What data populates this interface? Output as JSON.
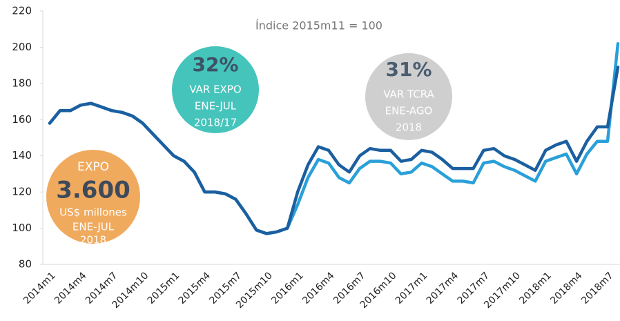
{
  "chart_data": {
    "type": "line",
    "subtitle": "Índice 2015m11 = 100",
    "categories": [
      "2014m1",
      null,
      null,
      "2014m4",
      null,
      null,
      "2014m7",
      null,
      null,
      "2014m10",
      null,
      null,
      "2015m1",
      null,
      null,
      "2015m4",
      null,
      null,
      "2015m7",
      null,
      null,
      "2015m10",
      null,
      null,
      "2016m1",
      null,
      null,
      "2016m4",
      null,
      null,
      "2016m7",
      null,
      null,
      "2016m10",
      null,
      null,
      "2017m1",
      null,
      null,
      "2017m4",
      null,
      null,
      "2017m7",
      null,
      null,
      "2017m10",
      null,
      null,
      "2018m1",
      null,
      null,
      "2018m4",
      null,
      null,
      "2018m7",
      null
    ],
    "series": [
      {
        "color": "#2aa0d8",
        "values": [
          158,
          165,
          165,
          168,
          169,
          167,
          165,
          164,
          162,
          158,
          152,
          146,
          140,
          137,
          131,
          120,
          120,
          119,
          116,
          108,
          99,
          97,
          98,
          100,
          113,
          128,
          138,
          136,
          128,
          125,
          133,
          137,
          137,
          136,
          130,
          131,
          136,
          134,
          130,
          126,
          126,
          125,
          136,
          137,
          134,
          132,
          129,
          126,
          137,
          139,
          141,
          130,
          141,
          148,
          148,
          202
        ]
      },
      {
        "color": "#1b5fa0",
        "values": [
          158,
          165,
          165,
          168,
          169,
          167,
          165,
          164,
          162,
          158,
          152,
          146,
          140,
          137,
          131,
          120,
          120,
          119,
          116,
          108,
          99,
          97,
          98,
          100,
          120,
          135,
          145,
          143,
          135,
          131,
          140,
          144,
          143,
          143,
          137,
          138,
          143,
          142,
          138,
          133,
          133,
          133,
          143,
          144,
          140,
          138,
          135,
          132,
          143,
          146,
          148,
          137,
          148,
          156,
          156,
          189
        ]
      }
    ],
    "ylim": [
      80,
      220
    ],
    "yticks": [
      80,
      100,
      120,
      140,
      160,
      180,
      200,
      220
    ],
    "annotations": [
      {
        "color": "#f0aa5e",
        "lines": [
          "EXPO",
          "3.600",
          "US$ millones",
          "ENE-JUL",
          "2018"
        ]
      },
      {
        "color": "#45c4bb",
        "lines": [
          "32%",
          "VAR EXPO",
          "ENE-JUL",
          "2018/17"
        ]
      },
      {
        "color": "#cfcfcf",
        "lines": [
          "31%",
          "VAR TCRA",
          "ENE-AGO",
          "2018"
        ]
      }
    ]
  }
}
